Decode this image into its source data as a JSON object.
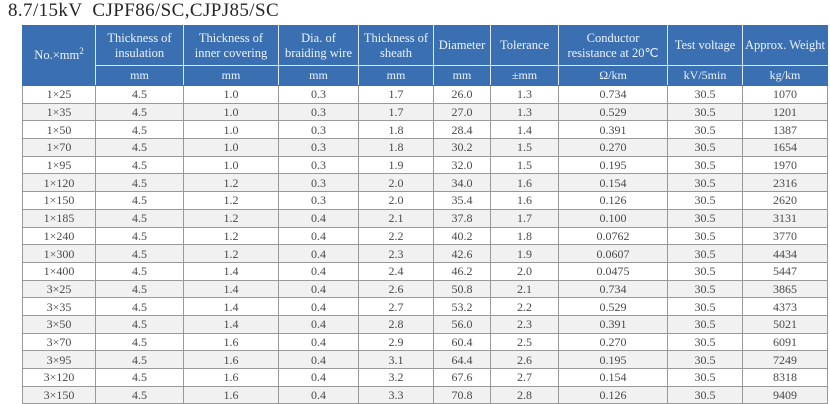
{
  "title": "8.7/15kV  CJPF86/SC,CJPJ85/SC",
  "colors": {
    "header_bg": "#3a70b2",
    "header_text": "#edf3fb",
    "body_text": "#4a4a4a",
    "grid": "#999999",
    "stripe": "#f1f1f1"
  },
  "table": {
    "corner": {
      "base": "No.×mm",
      "sup": "2"
    },
    "columns": [
      {
        "label": "Thickness of insulation",
        "unit": "mm"
      },
      {
        "label": "Thickness of inner covering",
        "unit": "mm"
      },
      {
        "label": "Dia. of braiding wire",
        "unit": "mm"
      },
      {
        "label": "Thickness of sheath",
        "unit": "mm"
      },
      {
        "label": "Diameter",
        "unit": "mm"
      },
      {
        "label": "Tolerance",
        "unit": "±mm"
      },
      {
        "label": "Conductor resistance at 20℃",
        "unit": "Ω/km"
      },
      {
        "label": "Test voltage",
        "unit": "kV/5min"
      },
      {
        "label": "Approx. Weight",
        "unit": "kg/km"
      }
    ],
    "rows": [
      [
        "1×25",
        "4.5",
        "1.0",
        "0.3",
        "1.7",
        "26.0",
        "1.3",
        "0.734",
        "30.5",
        "1070"
      ],
      [
        "1×35",
        "4.5",
        "1.0",
        "0.3",
        "1.7",
        "27.0",
        "1.3",
        "0.529",
        "30.5",
        "1201"
      ],
      [
        "1×50",
        "4.5",
        "1.0",
        "0.3",
        "1.8",
        "28.4",
        "1.4",
        "0.391",
        "30.5",
        "1387"
      ],
      [
        "1×70",
        "4.5",
        "1.0",
        "0.3",
        "1.8",
        "30.2",
        "1.5",
        "0.270",
        "30.5",
        "1654"
      ],
      [
        "1×95",
        "4.5",
        "1.0",
        "0.3",
        "1.9",
        "32.0",
        "1.5",
        "0.195",
        "30.5",
        "1970"
      ],
      [
        "1×120",
        "4.5",
        "1.2",
        "0.3",
        "2.0",
        "34.0",
        "1.6",
        "0.154",
        "30.5",
        "2316"
      ],
      [
        "1×150",
        "4.5",
        "1.2",
        "0.3",
        "2.0",
        "35.4",
        "1.6",
        "0.126",
        "30.5",
        "2620"
      ],
      [
        "1×185",
        "4.5",
        "1.2",
        "0.4",
        "2.1",
        "37.8",
        "1.7",
        "0.100",
        "30.5",
        "3131"
      ],
      [
        "1×240",
        "4.5",
        "1.2",
        "0.4",
        "2.2",
        "40.2",
        "1.8",
        "0.0762",
        "30.5",
        "3770"
      ],
      [
        "1×300",
        "4.5",
        "1.2",
        "0.4",
        "2.3",
        "42.6",
        "1.9",
        "0.0607",
        "30.5",
        "4434"
      ],
      [
        "1×400",
        "4.5",
        "1.4",
        "0.4",
        "2.4",
        "46.2",
        "2.0",
        "0.0475",
        "30.5",
        "5447"
      ],
      [
        "3×25",
        "4.5",
        "1.4",
        "0.4",
        "2.6",
        "50.8",
        "2.1",
        "0.734",
        "30.5",
        "3865"
      ],
      [
        "3×35",
        "4.5",
        "1.4",
        "0.4",
        "2.7",
        "53.2",
        "2.2",
        "0.529",
        "30.5",
        "4373"
      ],
      [
        "3×50",
        "4.5",
        "1.4",
        "0.4",
        "2.8",
        "56.0",
        "2.3",
        "0.391",
        "30.5",
        "5021"
      ],
      [
        "3×70",
        "4.5",
        "1.6",
        "0.4",
        "2.9",
        "60.4",
        "2.5",
        "0.270",
        "30.5",
        "6091"
      ],
      [
        "3×95",
        "4.5",
        "1.6",
        "0.4",
        "3.1",
        "64.4",
        "2.6",
        "0.195",
        "30.5",
        "7249"
      ],
      [
        "3×120",
        "4.5",
        "1.6",
        "0.4",
        "3.2",
        "67.6",
        "2.7",
        "0.154",
        "30.5",
        "8318"
      ],
      [
        "3×150",
        "4.5",
        "1.6",
        "0.4",
        "3.3",
        "70.8",
        "2.8",
        "0.126",
        "30.5",
        "9409"
      ]
    ]
  }
}
